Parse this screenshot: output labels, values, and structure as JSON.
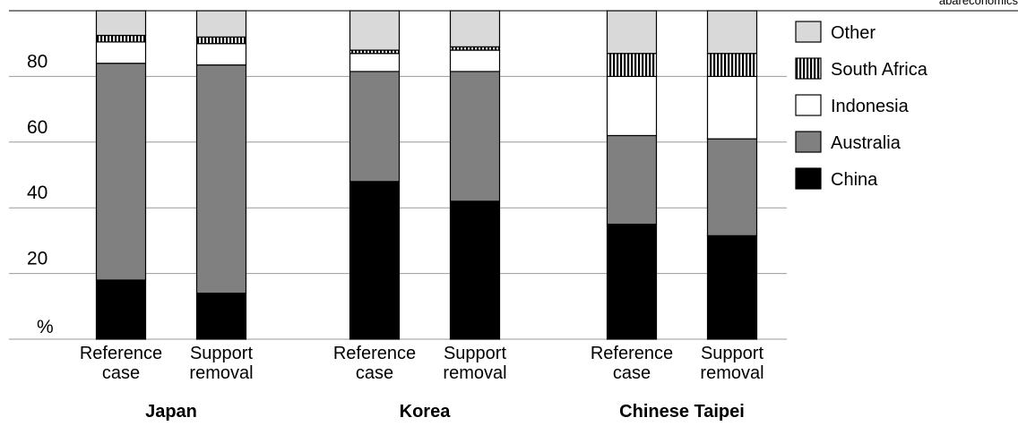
{
  "source_label": "abareconomics",
  "chart_data": {
    "type": "bar",
    "stacked": true,
    "ylabel": "%",
    "ylim": [
      0,
      100
    ],
    "yticks": [
      20,
      40,
      60,
      80
    ],
    "grid": true,
    "legend_position": "right",
    "groups": [
      {
        "name": "Japan",
        "bars": [
          {
            "label_lines": [
              "Reference",
              "case"
            ],
            "values": {
              "China": 18,
              "Australia": 66,
              "Indonesia": 6.5,
              "South Africa": 2,
              "Other": 7.5
            }
          },
          {
            "label_lines": [
              "Support",
              "removal"
            ],
            "values": {
              "China": 14,
              "Australia": 69.5,
              "Indonesia": 6.5,
              "South Africa": 2,
              "Other": 8
            }
          }
        ]
      },
      {
        "name": "Korea",
        "bars": [
          {
            "label_lines": [
              "Reference",
              "case"
            ],
            "values": {
              "China": 48,
              "Australia": 33.5,
              "Indonesia": 5.5,
              "South Africa": 1,
              "Other": 12
            }
          },
          {
            "label_lines": [
              "Support",
              "removal"
            ],
            "values": {
              "China": 42,
              "Australia": 39.5,
              "Indonesia": 6.5,
              "South Africa": 1,
              "Other": 11
            }
          }
        ]
      },
      {
        "name": "Chinese Taipei",
        "bars": [
          {
            "label_lines": [
              "Reference",
              "case"
            ],
            "values": {
              "China": 35,
              "Australia": 27,
              "Indonesia": 18,
              "South Africa": 7,
              "Other": 13
            }
          },
          {
            "label_lines": [
              "Support",
              "removal"
            ],
            "values": {
              "China": 31.5,
              "Australia": 29.5,
              "Indonesia": 19,
              "South Africa": 7,
              "Other": 13
            }
          }
        ]
      }
    ],
    "series": [
      {
        "name": "China",
        "color": "#000000",
        "pattern": "solid"
      },
      {
        "name": "Australia",
        "color": "#808080",
        "pattern": "solid"
      },
      {
        "name": "Indonesia",
        "color": "#ffffff",
        "pattern": "solid"
      },
      {
        "name": "South Africa",
        "color": "#000000",
        "pattern": "vertical-stripes"
      },
      {
        "name": "Other",
        "color": "#d9d9d9",
        "pattern": "solid"
      }
    ],
    "legend_order": [
      "Other",
      "South Africa",
      "Indonesia",
      "Australia",
      "China"
    ]
  }
}
